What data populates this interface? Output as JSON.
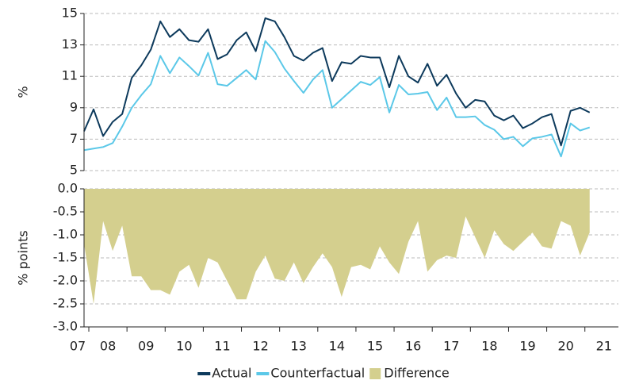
{
  "chart_data": [
    {
      "type": "line",
      "ylabel": "%",
      "x": [
        2007.875,
        2008.125,
        2008.375,
        2008.625,
        2008.875,
        2009.125,
        2009.375,
        2009.625,
        2009.875,
        2010.125,
        2010.375,
        2010.625,
        2010.875,
        2011.125,
        2011.375,
        2011.625,
        2011.875,
        2012.125,
        2012.375,
        2012.625,
        2012.875,
        2013.125,
        2013.375,
        2013.625,
        2013.875,
        2014.125,
        2014.375,
        2014.625,
        2014.875,
        2015.125,
        2015.375,
        2015.625,
        2015.875,
        2016.125,
        2016.375,
        2016.625,
        2016.875,
        2017.125,
        2017.375,
        2017.625,
        2017.875,
        2018.125,
        2018.375,
        2018.625,
        2018.875,
        2019.125,
        2019.375,
        2019.625,
        2019.875,
        2020.125,
        2020.375,
        2020.625,
        2020.875,
        2021.125
      ],
      "xlim": [
        2007.875,
        2021.92
      ],
      "ylim": [
        5,
        15
      ],
      "yticks": [
        5,
        7,
        9,
        11,
        13,
        15
      ],
      "grid": true,
      "series": [
        {
          "name": "Actual",
          "color": "#0d3a5c",
          "values": [
            7.5,
            8.9,
            7.2,
            8.1,
            8.6,
            10.9,
            11.7,
            12.7,
            14.5,
            13.5,
            14.0,
            13.3,
            13.2,
            14.0,
            12.1,
            12.4,
            13.3,
            13.8,
            12.6,
            14.7,
            14.5,
            13.5,
            12.3,
            12.0,
            12.5,
            12.8,
            10.7,
            11.9,
            11.8,
            12.3,
            12.2,
            12.2,
            10.3,
            12.3,
            11.0,
            10.6,
            11.8,
            10.4,
            11.1,
            9.9,
            9.0,
            9.5,
            9.4,
            8.5,
            8.2,
            8.5,
            7.7,
            8.0,
            8.4,
            8.6,
            6.6,
            8.8,
            9.0,
            8.7
          ]
        },
        {
          "name": "Counterfactual",
          "color": "#5bc8e8",
          "values": [
            6.3,
            6.4,
            6.5,
            6.75,
            7.8,
            9.0,
            9.8,
            10.5,
            12.3,
            11.2,
            12.2,
            11.65,
            11.05,
            12.5,
            10.5,
            10.4,
            10.9,
            11.4,
            10.8,
            13.25,
            12.55,
            11.5,
            10.7,
            9.95,
            10.8,
            11.4,
            9.0,
            9.55,
            10.1,
            10.65,
            10.45,
            10.95,
            8.7,
            10.45,
            9.85,
            9.9,
            10.0,
            8.85,
            9.65,
            8.4,
            8.4,
            8.45,
            7.9,
            7.6,
            7.0,
            7.15,
            6.55,
            7.05,
            7.15,
            7.3,
            5.9,
            8.0,
            7.55,
            7.75
          ]
        }
      ]
    },
    {
      "type": "area",
      "ylabel": "% points",
      "x": [
        2007.875,
        2008.125,
        2008.375,
        2008.625,
        2008.875,
        2009.125,
        2009.375,
        2009.625,
        2009.875,
        2010.125,
        2010.375,
        2010.625,
        2010.875,
        2011.125,
        2011.375,
        2011.625,
        2011.875,
        2012.125,
        2012.375,
        2012.625,
        2012.875,
        2013.125,
        2013.375,
        2013.625,
        2013.875,
        2014.125,
        2014.375,
        2014.625,
        2014.875,
        2015.125,
        2015.375,
        2015.625,
        2015.875,
        2016.125,
        2016.375,
        2016.625,
        2016.875,
        2017.125,
        2017.375,
        2017.625,
        2017.875,
        2018.125,
        2018.375,
        2018.625,
        2018.875,
        2019.125,
        2019.375,
        2019.625,
        2019.875,
        2020.125,
        2020.375,
        2020.625,
        2020.875,
        2021.125
      ],
      "xlim": [
        2007.875,
        2021.92
      ],
      "xticks": [
        {
          "value": 2007,
          "label": "07"
        },
        {
          "value": 2008,
          "label": "08"
        },
        {
          "value": 2009,
          "label": "09"
        },
        {
          "value": 2010,
          "label": "10"
        },
        {
          "value": 2011,
          "label": "11"
        },
        {
          "value": 2012,
          "label": "12"
        },
        {
          "value": 2013,
          "label": "13"
        },
        {
          "value": 2014,
          "label": "14"
        },
        {
          "value": 2015,
          "label": "15"
        },
        {
          "value": 2016,
          "label": "16"
        },
        {
          "value": 2017,
          "label": "17"
        },
        {
          "value": 2018,
          "label": "18"
        },
        {
          "value": 2019,
          "label": "19"
        },
        {
          "value": 2020,
          "label": "20"
        },
        {
          "value": 2021,
          "label": "21"
        }
      ],
      "ylim": [
        -3,
        0
      ],
      "yticks": [
        {
          "value": 0,
          "label": "0.0"
        },
        {
          "value": -0.5,
          "label": "-0.5"
        },
        {
          "value": -1,
          "label": "-1.0"
        },
        {
          "value": -1.5,
          "label": "-1.5"
        },
        {
          "value": -2,
          "label": "-2.0"
        },
        {
          "value": -2.5,
          "label": "-2.5"
        },
        {
          "value": -3,
          "label": "-3.0"
        }
      ],
      "grid": true,
      "series": [
        {
          "name": "Difference",
          "color": "#d4cf8e",
          "values": [
            -1.2,
            -2.5,
            -0.7,
            -1.35,
            -0.8,
            -1.9,
            -1.9,
            -2.2,
            -2.2,
            -2.3,
            -1.8,
            -1.65,
            -2.15,
            -1.5,
            -1.6,
            -2.0,
            -2.4,
            -2.4,
            -1.8,
            -1.45,
            -1.95,
            -2.0,
            -1.6,
            -2.05,
            -1.7,
            -1.4,
            -1.7,
            -2.35,
            -1.7,
            -1.65,
            -1.75,
            -1.25,
            -1.6,
            -1.85,
            -1.15,
            -0.7,
            -1.8,
            -1.55,
            -1.45,
            -1.5,
            -0.6,
            -1.05,
            -1.5,
            -0.9,
            -1.2,
            -1.35,
            -1.15,
            -0.95,
            -1.25,
            -1.3,
            -0.7,
            -0.8,
            -1.45,
            -0.95
          ]
        }
      ]
    }
  ]
}
